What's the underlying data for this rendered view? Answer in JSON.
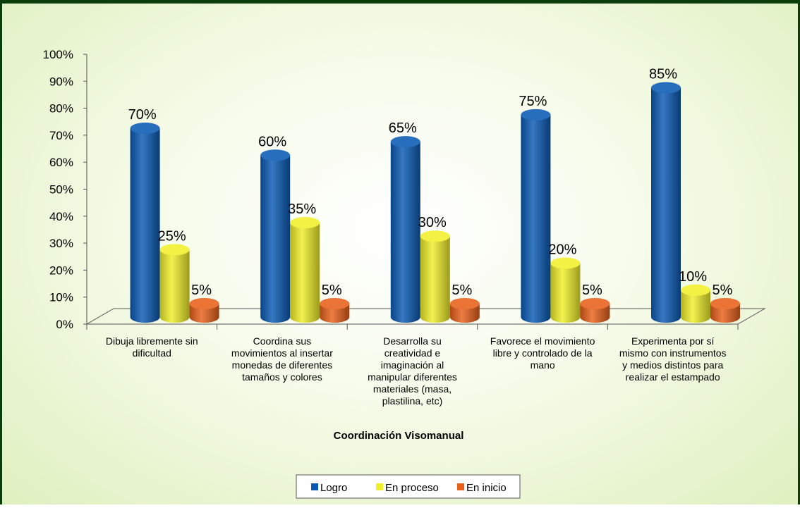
{
  "chart_data": {
    "type": "bar",
    "categories": [
      [
        "Dibuja libremente sin",
        "dificultad"
      ],
      [
        "Coordina sus",
        "movimientos al insertar",
        "monedas de diferentes",
        "tamaños y colores"
      ],
      [
        "Desarrolla su",
        "creatividad e",
        "imaginación  al",
        "manipular diferentes",
        "materiales (masa,",
        "plastilina, etc)"
      ],
      [
        "Favorece el movimiento",
        "libre y controlado de la",
        "mano"
      ],
      [
        "Experimenta  por sí",
        "mismo con instrumentos",
        "y medios distintos para",
        "realizar el estampado"
      ]
    ],
    "series": [
      {
        "name": "Logro",
        "values": [
          70,
          60,
          65,
          75,
          85
        ],
        "labels": [
          "70%",
          "60%",
          "65%",
          "75%",
          "85%"
        ],
        "color": "#0a5ab4"
      },
      {
        "name": "En proceso",
        "values": [
          25,
          35,
          30,
          20,
          10
        ],
        "labels": [
          "25%",
          "35%",
          "30%",
          "20%",
          "10%"
        ],
        "color": "#f0ef2a"
      },
      {
        "name": "En inicio",
        "values": [
          5,
          5,
          5,
          5,
          5
        ],
        "labels": [
          "5%",
          "5%",
          "5%",
          "5%",
          "5%"
        ],
        "color": "#e8601a"
      }
    ],
    "ylim": [
      0,
      100
    ],
    "yticks": [
      "0%",
      "10%",
      "20%",
      "30%",
      "40%",
      "50%",
      "60%",
      "70%",
      "80%",
      "90%",
      "100%"
    ],
    "xlabel": "Coordinación Visomanual",
    "ylabel": "",
    "title": "",
    "legend_position": "bottom",
    "grid": false
  }
}
